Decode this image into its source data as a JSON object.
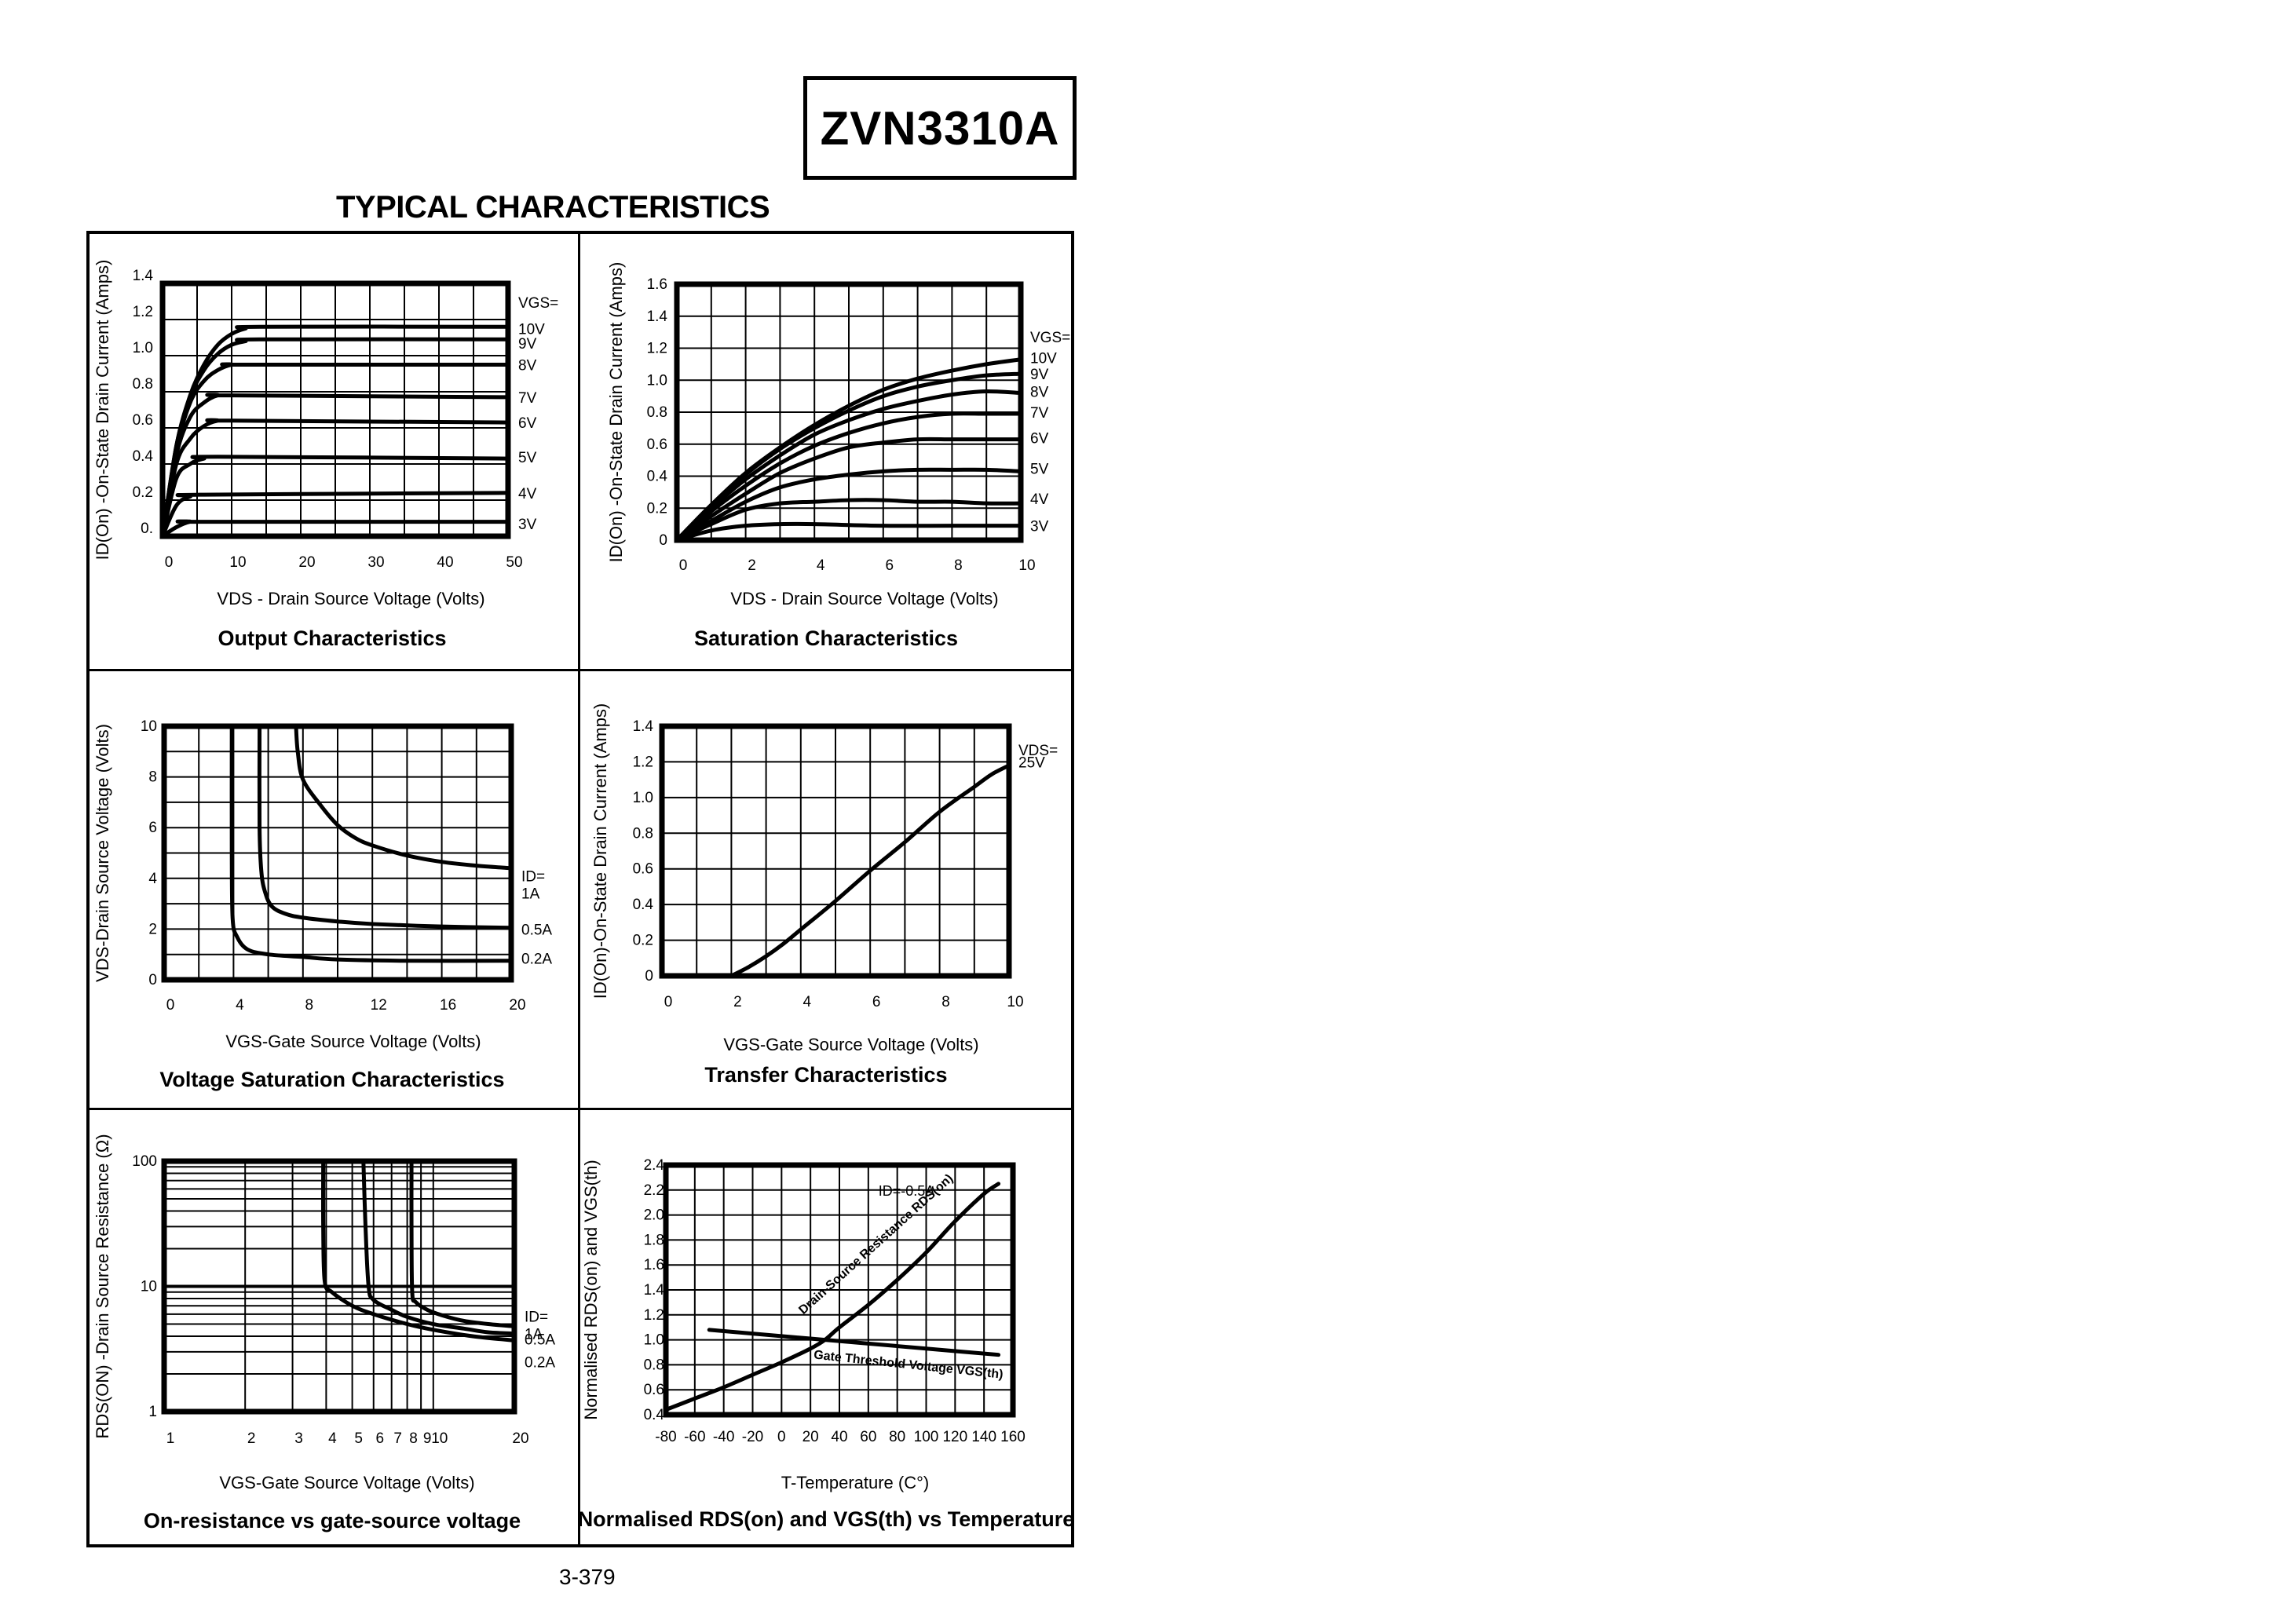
{
  "header": {
    "part_number": "ZVN3310A",
    "section_title": "TYPICAL CHARACTERISTICS"
  },
  "footer": {
    "page_number": "3-379"
  },
  "chart_data": [
    {
      "id": "output",
      "type": "line",
      "title": "Output Characteristics",
      "xlabel": "VDS - Drain Source Voltage (Volts)",
      "ylabel": "ID(On) -On-State Drain Current (Amps)",
      "xlim": [
        0,
        50
      ],
      "ylim": [
        0,
        1.4
      ],
      "xticks": [
        0,
        10,
        20,
        30,
        40,
        50
      ],
      "yticks": [
        0,
        0.2,
        0.4,
        0.6,
        0.8,
        1.0,
        1.2,
        1.4
      ],
      "ytick_labels": [
        "0.",
        "0.2",
        "0.4",
        "0.6",
        "0.8",
        "1.0",
        "1.2",
        "1.4"
      ],
      "grid": true,
      "xgrid_step": 5,
      "ygrid_step": 0.2,
      "legend_title": "VGS=",
      "series": [
        {
          "name": "10V",
          "x": [
            0,
            2,
            4,
            6,
            8,
            10,
            12,
            14,
            50
          ],
          "y": [
            0,
            0.5,
            0.78,
            0.95,
            1.06,
            1.12,
            1.15,
            1.16,
            1.16
          ]
        },
        {
          "name": "9V",
          "x": [
            0,
            2,
            4,
            6,
            8,
            10,
            12,
            14,
            50
          ],
          "y": [
            0,
            0.5,
            0.77,
            0.92,
            1.01,
            1.06,
            1.08,
            1.09,
            1.09
          ]
        },
        {
          "name": "8V",
          "x": [
            0,
            2,
            4,
            6,
            8,
            10,
            12,
            50
          ],
          "y": [
            0,
            0.48,
            0.74,
            0.86,
            0.92,
            0.95,
            0.95,
            0.95
          ]
        },
        {
          "name": "7V",
          "x": [
            0,
            2,
            4,
            6,
            8,
            10,
            50
          ],
          "y": [
            0,
            0.45,
            0.66,
            0.74,
            0.78,
            0.78,
            0.77
          ]
        },
        {
          "name": "6V",
          "x": [
            0,
            2,
            4,
            6,
            8,
            10,
            50
          ],
          "y": [
            0,
            0.4,
            0.54,
            0.61,
            0.64,
            0.64,
            0.63
          ]
        },
        {
          "name": "5V",
          "x": [
            0,
            2,
            4,
            6,
            8,
            50
          ],
          "y": [
            0,
            0.32,
            0.4,
            0.43,
            0.44,
            0.43
          ]
        },
        {
          "name": "4V",
          "x": [
            0,
            2,
            4,
            6,
            50
          ],
          "y": [
            0,
            0.17,
            0.22,
            0.23,
            0.24
          ]
        },
        {
          "name": "3V",
          "x": [
            0,
            2,
            4,
            6,
            50
          ],
          "y": [
            0,
            0.05,
            0.08,
            0.08,
            0.08
          ]
        }
      ],
      "series_label_y": [
        1.15,
        1.07,
        0.95,
        0.77,
        0.63,
        0.44,
        0.24,
        0.07
      ]
    },
    {
      "id": "saturation",
      "type": "line",
      "title": "Saturation Characteristics",
      "xlabel": "VDS - Drain Source Voltage (Volts)",
      "ylabel": "ID(On) -On-State Drain Current (Amps)",
      "xlim": [
        0,
        10
      ],
      "ylim": [
        0,
        1.6
      ],
      "xticks": [
        0,
        2,
        4,
        6,
        8,
        10
      ],
      "yticks": [
        0,
        0.2,
        0.4,
        0.6,
        0.8,
        1.0,
        1.2,
        1.4,
        1.6
      ],
      "ytick_labels": [
        "0",
        "0.2",
        "0.4",
        "0.6",
        "0.8",
        "1.0",
        "1.2",
        "1.4",
        "1.6"
      ],
      "grid": true,
      "xgrid_step": 1,
      "ygrid_step": 0.2,
      "legend_title": "VGS=",
      "series": [
        {
          "name": "10V",
          "x": [
            0,
            1,
            2,
            3,
            4,
            5,
            6,
            7,
            8,
            9,
            10
          ],
          "y": [
            0,
            0.22,
            0.42,
            0.58,
            0.72,
            0.84,
            0.94,
            1.01,
            1.06,
            1.1,
            1.13
          ]
        },
        {
          "name": "9V",
          "x": [
            0,
            1,
            2,
            3,
            4,
            5,
            6,
            7,
            8,
            9,
            10
          ],
          "y": [
            0,
            0.22,
            0.41,
            0.57,
            0.7,
            0.81,
            0.9,
            0.96,
            1.0,
            1.03,
            1.04
          ]
        },
        {
          "name": "8V",
          "x": [
            0,
            1,
            2,
            3,
            4,
            5,
            6,
            7,
            8,
            9,
            10
          ],
          "y": [
            0,
            0.2,
            0.38,
            0.53,
            0.66,
            0.75,
            0.82,
            0.87,
            0.91,
            0.93,
            0.92
          ]
        },
        {
          "name": "7V",
          "x": [
            0,
            1,
            2,
            3,
            4,
            5,
            6,
            7,
            8,
            9,
            10
          ],
          "y": [
            0,
            0.18,
            0.34,
            0.48,
            0.59,
            0.67,
            0.73,
            0.77,
            0.79,
            0.79,
            0.79
          ]
        },
        {
          "name": "6V",
          "x": [
            0,
            1,
            2,
            3,
            4,
            5,
            6,
            7,
            8,
            9,
            10
          ],
          "y": [
            0,
            0.15,
            0.29,
            0.42,
            0.51,
            0.58,
            0.61,
            0.63,
            0.63,
            0.63,
            0.63
          ]
        },
        {
          "name": "5V",
          "x": [
            0,
            1,
            2,
            3,
            4,
            5,
            6,
            7,
            8,
            9,
            10
          ],
          "y": [
            0,
            0.12,
            0.24,
            0.33,
            0.38,
            0.41,
            0.43,
            0.44,
            0.44,
            0.44,
            0.43
          ]
        },
        {
          "name": "4V",
          "x": [
            0,
            1,
            2,
            3,
            4,
            5,
            6,
            7,
            8,
            9,
            10
          ],
          "y": [
            0,
            0.1,
            0.19,
            0.23,
            0.24,
            0.25,
            0.25,
            0.24,
            0.24,
            0.23,
            0.23
          ]
        },
        {
          "name": "3V",
          "x": [
            0,
            1,
            2,
            3,
            4,
            6,
            8,
            10
          ],
          "y": [
            0,
            0.06,
            0.09,
            0.1,
            0.1,
            0.09,
            0.09,
            0.09
          ]
        }
      ],
      "series_label_y": [
        1.14,
        1.04,
        0.93,
        0.8,
        0.64,
        0.45,
        0.26,
        0.09
      ]
    },
    {
      "id": "voltage-saturation",
      "type": "line",
      "title": "Voltage Saturation Characteristics",
      "xlabel": "VGS-Gate Source Voltage  (Volts)",
      "ylabel": "VDS-Drain Source  Voltage (Volts)",
      "xlim": [
        0,
        20
      ],
      "ylim": [
        0,
        10
      ],
      "xticks": [
        0,
        4,
        8,
        12,
        16,
        20
      ],
      "yticks": [
        0,
        2,
        4,
        6,
        8,
        10
      ],
      "ytick_labels": [
        "0",
        "2",
        "4",
        "6",
        "8",
        "10"
      ],
      "grid": true,
      "xgrid_step": 2,
      "ygrid_step": 1,
      "legend_title": "ID=",
      "series": [
        {
          "name": "1A",
          "x": [
            7.6,
            7.7,
            8.0,
            9.0,
            10.0,
            11.0,
            12.0,
            14.0,
            16.0,
            18.0,
            20.0
          ],
          "y": [
            10,
            9,
            7.9,
            6.9,
            6.1,
            5.6,
            5.3,
            4.9,
            4.65,
            4.5,
            4.4
          ]
        },
        {
          "name": "0.5A",
          "x": [
            5.5,
            5.5,
            5.6,
            5.8,
            6.2,
            7.0,
            8.0,
            10.0,
            12.0,
            16.0,
            20.0
          ],
          "y": [
            10,
            6,
            4.3,
            3.5,
            2.9,
            2.6,
            2.45,
            2.3,
            2.2,
            2.1,
            2.05
          ]
        },
        {
          "name": "0.2A",
          "x": [
            3.9,
            3.9,
            3.95,
            4.2,
            4.8,
            6.0,
            8.0,
            10.0,
            14.0,
            20.0
          ],
          "y": [
            10,
            5,
            2.4,
            1.7,
            1.2,
            1.0,
            0.9,
            0.8,
            0.75,
            0.75
          ]
        }
      ],
      "series_labels": [
        "ID=\n1A",
        "0.5A",
        "0.2A"
      ],
      "series_label_y": [
        4.1,
        2.0,
        0.85
      ]
    },
    {
      "id": "transfer",
      "type": "line",
      "title": "Transfer Characteristics",
      "xlabel": "VGS-Gate Source Voltage (Volts)",
      "ylabel": "ID(On)-On-State Drain Current  (Amps)",
      "xlim": [
        0,
        10
      ],
      "ylim": [
        0,
        1.4
      ],
      "xticks": [
        0,
        2,
        4,
        6,
        8,
        10
      ],
      "yticks": [
        0,
        0.2,
        0.4,
        0.6,
        0.8,
        1.0,
        1.2,
        1.4
      ],
      "ytick_labels": [
        "0",
        "0.2",
        "0.4",
        "0.6",
        "0.8",
        "1.0",
        "1.2",
        "1.4"
      ],
      "grid": true,
      "xgrid_step": 1,
      "ygrid_step": 0.2,
      "legend_title": "VDS=",
      "series": [
        {
          "name": "25V",
          "x": [
            2.0,
            2.5,
            3.0,
            3.5,
            4.0,
            5.0,
            6.0,
            7.0,
            8.0,
            9.0,
            9.5,
            10.0
          ],
          "y": [
            0,
            0.05,
            0.11,
            0.18,
            0.26,
            0.42,
            0.59,
            0.75,
            0.92,
            1.06,
            1.13,
            1.18
          ]
        }
      ],
      "series_label_y": [
        1.2
      ]
    },
    {
      "id": "on-resistance",
      "type": "line",
      "title": "On-resistance vs gate-source voltage",
      "xlabel": "VGS-Gate Source Voltage (Volts)",
      "ylabel": "RDS(ON) -Drain Source Resistance (Ω)",
      "xscale": "log",
      "yscale": "log",
      "xlim": [
        1,
        20
      ],
      "ylim": [
        1,
        100
      ],
      "xticks": [
        1,
        2,
        3,
        4,
        5,
        6,
        7,
        8,
        9,
        10,
        20
      ],
      "yticks": [
        1,
        10,
        100
      ],
      "ytick_labels": [
        "1",
        "10",
        "100"
      ],
      "grid": true,
      "legend_title": "ID=",
      "series": [
        {
          "name": "1A",
          "x": [
            8.3,
            8.3,
            8.35,
            8.6,
            9.5,
            11,
            13,
            16,
            20
          ],
          "y": [
            100,
            30,
            9,
            7.5,
            6.5,
            5.8,
            5.3,
            5.0,
            4.8
          ]
        },
        {
          "name": "0.5A",
          "x": [
            5.5,
            5.6,
            5.75,
            6.0,
            7.0,
            8.0,
            10,
            13,
            16,
            20
          ],
          "y": [
            100,
            30,
            10,
            7.8,
            6.5,
            5.7,
            5.0,
            4.6,
            4.3,
            4.2
          ]
        },
        {
          "name": "0.2A",
          "x": [
            3.9,
            3.9,
            3.95,
            4.2,
            5.0,
            6.0,
            8.0,
            10,
            14,
            20
          ],
          "y": [
            100,
            30,
            11,
            9,
            7,
            6,
            5,
            4.5,
            4.0,
            3.7
          ]
        }
      ],
      "series_labels": [
        "ID=\n1A",
        "0.5A",
        "0.2A"
      ]
    },
    {
      "id": "temperature",
      "type": "line",
      "title": "Normalised RDS(on) and VGS(th) vs Temperature",
      "xlabel": "T-Temperature (C°)",
      "ylabel": "Normalised RDS(on) and VGS(th)",
      "xlim": [
        -80,
        160
      ],
      "ylim": [
        0.4,
        2.4
      ],
      "xticks": [
        -80,
        -60,
        -40,
        -20,
        0,
        20,
        40,
        60,
        80,
        100,
        120,
        140,
        160
      ],
      "yticks": [
        0.4,
        0.6,
        0.8,
        1.0,
        1.2,
        1.4,
        1.6,
        1.8,
        2.0,
        2.2,
        2.4
      ],
      "ytick_labels": [
        "0.4",
        "0.6",
        "0.8",
        "1.0",
        "1.2",
        "1.4",
        "1.6",
        "1.8",
        "2.0",
        "2.2",
        "2.4"
      ],
      "grid": true,
      "xgrid_step": 20,
      "ygrid_step": 0.2,
      "annotation": "ID=-0.5A",
      "series": [
        {
          "name": "Drain-Source Resistance RDS(on)",
          "x": [
            -80,
            -60,
            -40,
            -20,
            0,
            20,
            30,
            40,
            60,
            80,
            100,
            120,
            140,
            150
          ],
          "y": [
            0.44,
            0.53,
            0.62,
            0.72,
            0.82,
            0.93,
            1.0,
            1.1,
            1.28,
            1.48,
            1.7,
            1.95,
            2.17,
            2.25
          ]
        },
        {
          "name": "Gate Threshold Voltage VGS(th)",
          "x": [
            -50,
            0,
            30,
            60,
            100,
            150
          ],
          "y": [
            1.08,
            1.03,
            1.0,
            0.97,
            0.93,
            0.88
          ]
        }
      ]
    }
  ]
}
